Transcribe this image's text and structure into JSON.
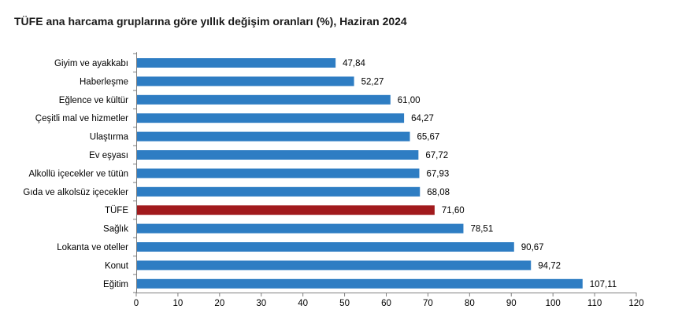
{
  "chart_data": {
    "type": "bar",
    "orientation": "horizontal",
    "title": "TÜFE ana harcama gruplarına göre yıllık değişim oranları (%), Haziran 2024",
    "categories": [
      "Giyim ve ayakkabı",
      "Haberleşme",
      "Eğlence ve kültür",
      "Çeşitli mal ve hizmetler",
      "Ulaştırma",
      "Ev eşyası",
      "Alkollü içecekler ve tütün",
      "Gıda ve alkolsüz içecekler",
      "TÜFE",
      "Sağlık",
      "Lokanta ve oteller",
      "Konut",
      "Eğitim"
    ],
    "values": [
      47.84,
      52.27,
      61.0,
      64.27,
      65.67,
      67.72,
      67.93,
      68.08,
      71.6,
      78.51,
      90.67,
      94.72,
      107.11
    ],
    "value_labels": [
      "47,84",
      "52,27",
      "61,00",
      "64,27",
      "65,67",
      "67,72",
      "67,93",
      "68,08",
      "71,60",
      "78,51",
      "90,67",
      "94,72",
      "107,11"
    ],
    "xlim": [
      0,
      120
    ],
    "xticks": [
      0,
      10,
      20,
      30,
      40,
      50,
      60,
      70,
      80,
      90,
      100,
      110,
      120
    ],
    "xlabel": "",
    "ylabel": "",
    "grid": false,
    "legend": "none",
    "colors": {
      "default_bar": "#2E7DC3",
      "highlight_bar": "#A11A1D",
      "highlight_category": "TÜFE",
      "axis": "#7f7f7f"
    }
  }
}
